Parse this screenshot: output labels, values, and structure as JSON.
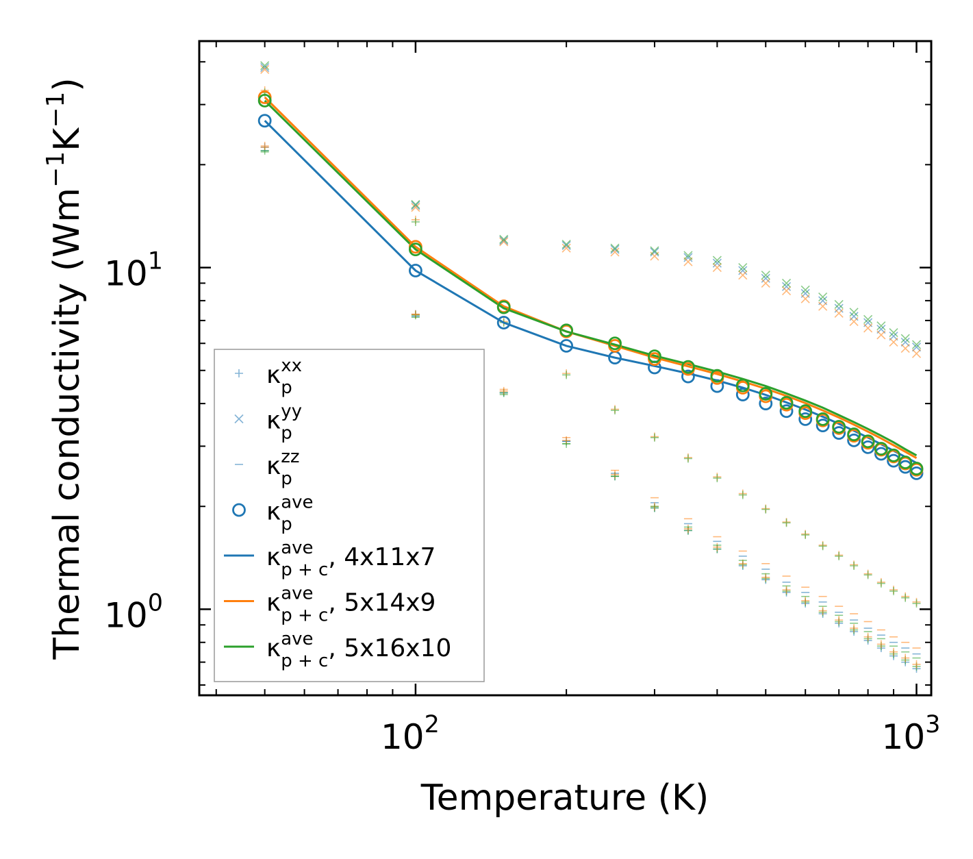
{
  "chart_data": {
    "type": "scatter",
    "title": "",
    "xlabel": "Temperature (K)",
    "ylabel": {
      "base": "Thermal conductivity (Wm",
      "exp1": "−1",
      "mid": "K",
      "exp2": "−1",
      "end": ")"
    },
    "xscale": "log",
    "yscale": "log",
    "xlim": [
      37,
      1070
    ],
    "ylim": [
      0.56,
      46
    ],
    "x_ticks": [
      {
        "value": 100,
        "base": "10",
        "exp": "2"
      },
      {
        "value": 1000,
        "base": "10",
        "exp": "3"
      }
    ],
    "y_ticks": [
      {
        "value": 1,
        "base": "10",
        "exp": "0"
      },
      {
        "value": 10,
        "base": "10",
        "exp": "1"
      }
    ],
    "colors": {
      "blue": "#1f77b4",
      "orange": "#ff7f0e",
      "green": "#2ca02c"
    },
    "x": [
      50,
      100,
      150,
      200,
      250,
      300,
      350,
      400,
      450,
      500,
      550,
      600,
      650,
      700,
      750,
      800,
      850,
      900,
      950,
      1000
    ],
    "series": [
      {
        "id": "kxx",
        "label": {
          "sym": "κ",
          "sup": "xx",
          "sub": "p"
        },
        "marker": "plus",
        "values": [
          22.5,
          7.3,
          4.3,
          3.1,
          2.45,
          1.98,
          1.7,
          1.5,
          1.34,
          1.22,
          1.12,
          1.04,
          0.97,
          0.91,
          0.86,
          0.81,
          0.77,
          0.73,
          0.7,
          0.67
        ]
      },
      {
        "id": "kyy",
        "label": {
          "sym": "κ",
          "sup": "yy",
          "sub": "p"
        },
        "marker": "x",
        "values": [
          38.5,
          15.2,
          12.0,
          11.6,
          11.3,
          11.1,
          10.7,
          10.3,
          9.8,
          9.3,
          8.8,
          8.4,
          8.0,
          7.6,
          7.2,
          6.9,
          6.6,
          6.3,
          6.05,
          5.85
        ]
      },
      {
        "id": "kzz",
        "label": {
          "sym": "κ",
          "sup": "zz",
          "sub": "p"
        },
        "marker": "dash",
        "values": [
          22.0,
          7.2,
          4.3,
          3.1,
          2.5,
          2.05,
          1.78,
          1.58,
          1.43,
          1.31,
          1.2,
          1.12,
          1.05,
          0.98,
          0.93,
          0.88,
          0.84,
          0.8,
          0.77,
          0.74
        ]
      },
      {
        "id": "kave",
        "label": {
          "sym": "κ",
          "sup": "ave",
          "sub": "p"
        },
        "marker": "circle",
        "values": [
          26.9,
          9.8,
          6.9,
          5.9,
          5.45,
          5.1,
          4.8,
          4.5,
          4.25,
          4.0,
          3.8,
          3.6,
          3.45,
          3.28,
          3.12,
          2.98,
          2.85,
          2.72,
          2.61,
          2.5
        ]
      },
      {
        "id": "line1",
        "label": {
          "sym": "κ",
          "sup": "ave",
          "sub": "p + c",
          "text": ", 4x11x7"
        },
        "marker": "line",
        "color": "#1f77b4",
        "values": [
          26.9,
          9.8,
          6.9,
          5.9,
          5.45,
          5.15,
          4.9,
          4.67,
          4.45,
          4.24,
          4.03,
          3.84,
          3.66,
          3.49,
          3.33,
          3.18,
          3.04,
          2.91,
          2.79,
          2.68
        ]
      },
      {
        "id": "line2",
        "label": {
          "sym": "κ",
          "sup": "ave",
          "sub": "p + c",
          "text": ", 5x14x9"
        },
        "marker": "line",
        "color": "#ff7f0e",
        "values": [
          31.5,
          11.5,
          7.7,
          6.5,
          5.9,
          5.45,
          5.14,
          4.88,
          4.64,
          4.42,
          4.21,
          4.01,
          3.82,
          3.64,
          3.47,
          3.31,
          3.16,
          3.02,
          2.89,
          2.77
        ]
      },
      {
        "id": "line3",
        "label": {
          "sym": "κ",
          "sup": "ave",
          "sub": "p + c",
          "text": ", 5x16x10"
        },
        "marker": "line",
        "color": "#2ca02c",
        "values": [
          30.8,
          11.3,
          7.6,
          6.5,
          5.95,
          5.52,
          5.22,
          4.96,
          4.72,
          4.5,
          4.28,
          4.08,
          3.89,
          3.7,
          3.53,
          3.37,
          3.22,
          3.08,
          2.94,
          2.82
        ]
      }
    ],
    "overlay_points": [
      {
        "series": "kxx",
        "color": "#2ca02c",
        "values": [
          22.0,
          7.25,
          4.3,
          3.05,
          2.45,
          1.98,
          1.7,
          1.5,
          1.35,
          1.23,
          1.13,
          1.05,
          0.98,
          0.92,
          0.87,
          0.82,
          0.78,
          0.74,
          0.71,
          0.68
        ]
      },
      {
        "series": "kxx",
        "color": "#ff7f0e",
        "values": [
          22.7,
          7.3,
          4.35,
          3.12,
          2.48,
          2.0,
          1.72,
          1.52,
          1.36,
          1.24,
          1.14,
          1.06,
          0.99,
          0.93,
          0.88,
          0.83,
          0.79,
          0.75,
          0.72,
          0.69
        ]
      },
      {
        "series": "upper_plus",
        "color": "#ff7f0e",
        "values": [
          33.0,
          13.8,
          6.95,
          4.9,
          3.85,
          3.2,
          2.78,
          2.44,
          2.18,
          1.97,
          1.8,
          1.66,
          1.54,
          1.44,
          1.35,
          1.27,
          1.2,
          1.14,
          1.09,
          1.05
        ]
      },
      {
        "series": "upper_plus",
        "color": "#2ca02c",
        "values": [
          32.5,
          13.6,
          6.9,
          4.85,
          3.82,
          3.18,
          2.76,
          2.42,
          2.16,
          1.96,
          1.79,
          1.65,
          1.53,
          1.43,
          1.34,
          1.26,
          1.19,
          1.13,
          1.08,
          1.04
        ]
      },
      {
        "series": "kyy",
        "color": "#ff7f0e",
        "values": [
          38.0,
          15.0,
          11.9,
          11.4,
          11.1,
          10.8,
          10.4,
          10.0,
          9.5,
          9.0,
          8.55,
          8.1,
          7.7,
          7.35,
          6.95,
          6.65,
          6.35,
          6.05,
          5.8,
          5.6
        ]
      },
      {
        "series": "kyy",
        "color": "#2ca02c",
        "values": [
          39.0,
          15.3,
          12.1,
          11.7,
          11.4,
          11.2,
          10.85,
          10.5,
          10.0,
          9.5,
          9.0,
          8.6,
          8.2,
          7.8,
          7.4,
          7.05,
          6.75,
          6.45,
          6.2,
          5.95
        ]
      },
      {
        "series": "kzz",
        "color": "#ff7f0e",
        "values": [
          22.5,
          7.3,
          4.4,
          3.18,
          2.55,
          2.12,
          1.84,
          1.63,
          1.48,
          1.36,
          1.25,
          1.16,
          1.09,
          1.02,
          0.97,
          0.92,
          0.87,
          0.83,
          0.8,
          0.77
        ]
      },
      {
        "series": "kzz",
        "color": "#2ca02c",
        "values": [
          21.8,
          7.15,
          4.25,
          3.05,
          2.45,
          2.0,
          1.74,
          1.54,
          1.39,
          1.27,
          1.17,
          1.09,
          1.02,
          0.96,
          0.91,
          0.86,
          0.82,
          0.78,
          0.75,
          0.72
        ]
      },
      {
        "series": "kave",
        "color": "#ff7f0e",
        "values": [
          31.5,
          11.5,
          7.7,
          6.5,
          5.9,
          5.4,
          5.05,
          4.75,
          4.45,
          4.2,
          3.97,
          3.75,
          3.57,
          3.39,
          3.22,
          3.07,
          2.93,
          2.8,
          2.67,
          2.56
        ]
      },
      {
        "series": "kave",
        "color": "#2ca02c",
        "values": [
          30.8,
          11.3,
          7.65,
          6.55,
          6.0,
          5.5,
          5.12,
          4.82,
          4.52,
          4.27,
          4.02,
          3.8,
          3.6,
          3.42,
          3.25,
          3.1,
          2.95,
          2.82,
          2.69,
          2.58
        ]
      }
    ],
    "legend": {
      "position": "lower-left"
    }
  }
}
